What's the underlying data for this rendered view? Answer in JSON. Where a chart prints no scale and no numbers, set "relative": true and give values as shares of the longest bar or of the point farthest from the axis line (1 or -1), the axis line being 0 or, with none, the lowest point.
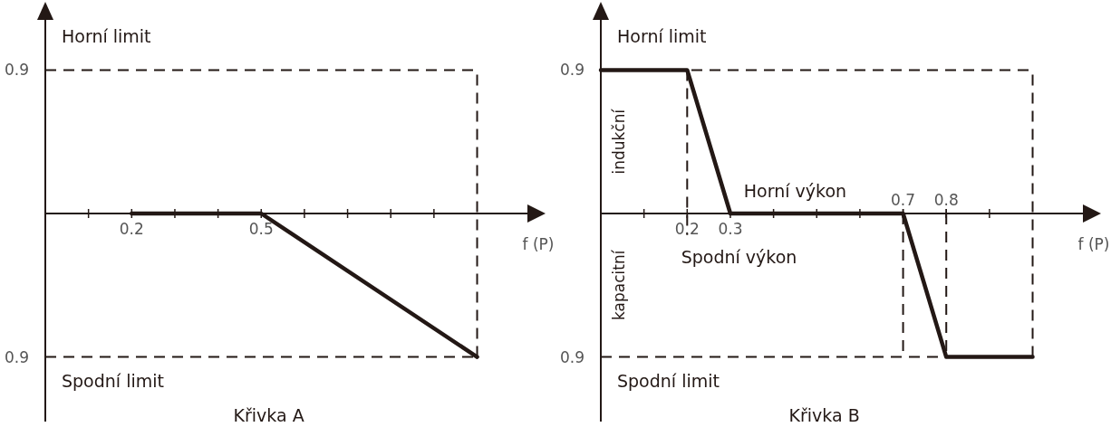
{
  "chart_data": [
    {
      "type": "line",
      "title": "Křivka A",
      "xlabel": "f (P)",
      "xlim": [
        0,
        1.15
      ],
      "relative": true,
      "xticks": [
        {
          "value": 0.1,
          "label": null
        },
        0.2,
        {
          "value": 0.3,
          "label": null
        },
        {
          "value": 0.4,
          "label": null
        },
        0.5,
        {
          "value": 0.6,
          "label": null
        },
        {
          "value": 0.7,
          "label": null
        },
        {
          "value": 0.8,
          "label": null
        },
        {
          "value": 0.9,
          "label": null
        }
      ],
      "marker": "none",
      "series": [
        {
          "color": "#231815",
          "line_style": "solid",
          "x": [
            0.2,
            0.5,
            1
          ],
          "values": [
            0,
            0,
            -1
          ]
        }
      ],
      "ref_lines": [
        {
          "axis": "y",
          "value": 1,
          "label": "Horní limit",
          "color": "#231815",
          "line_style": "dashed"
        },
        {
          "axis": "y",
          "value": -1,
          "label": "Spodní limit",
          "color": "#231815",
          "line_style": "dashed"
        },
        {
          "axis": "x",
          "value": 1,
          "color": "#231815",
          "line_style": "dashed"
        }
      ],
      "annotations": [
        {
          "text": "0.9",
          "x": 0,
          "y": 1
        },
        {
          "text": "0.9",
          "x": 0,
          "y": -1
        }
      ]
    },
    {
      "type": "line",
      "title": "Křivka B",
      "xlabel": "f (P)",
      "xlim": [
        0,
        1.15
      ],
      "x2lim": [
        0,
        1.15
      ],
      "relative": true,
      "xticks": [
        {
          "value": 0.1,
          "label": null
        },
        0.2,
        0.3,
        {
          "value": 0.4,
          "label": null
        },
        {
          "value": 0.5,
          "label": null
        },
        {
          "value": 0.6,
          "label": null
        },
        {
          "value": 0.7,
          "label": null
        },
        {
          "value": 0.8,
          "label": null
        },
        {
          "value": 0.9,
          "label": null
        }
      ],
      "x2ticks": [
        0.7,
        0.8
      ],
      "marker": "none",
      "series": [
        {
          "color": "#231815",
          "line_style": "solid",
          "x": [
            0,
            0.2,
            0.3,
            0.7,
            0.8,
            1
          ],
          "values": [
            1,
            1,
            0,
            0,
            -1,
            -1
          ]
        },
        {
          "color": "#231815",
          "line_style": "dashed",
          "x": [
            0.2,
            0.2
          ],
          "values": [
            1,
            -0.15
          ]
        },
        {
          "color": "#231815",
          "line_style": "dashed",
          "x": [
            0.7,
            0.7
          ],
          "values": [
            0,
            -1
          ]
        },
        {
          "color": "#231815",
          "line_style": "dashed",
          "x": [
            0.8,
            0.8
          ],
          "values": [
            0,
            -1
          ]
        }
      ],
      "ref_lines": [
        {
          "axis": "y",
          "value": 1,
          "label": "Horní limit",
          "color": "#231815",
          "line_style": "dashed"
        },
        {
          "axis": "y",
          "value": -1,
          "label": "Spodní limit",
          "color": "#231815",
          "line_style": "dashed"
        },
        {
          "axis": "x",
          "value": 1,
          "color": "#231815",
          "line_style": "dashed"
        }
      ],
      "annotations": [
        "indukční",
        "kapacitní",
        {
          "text": "0.9",
          "x": 0,
          "y": 1
        },
        {
          "text": "0.9",
          "x": 0,
          "y": -1
        },
        {
          "text": "Horní výkon",
          "x": 0.45,
          "y": 0
        },
        {
          "text": "Spodní výkon",
          "x": 0.32,
          "y": 0
        }
      ]
    }
  ]
}
